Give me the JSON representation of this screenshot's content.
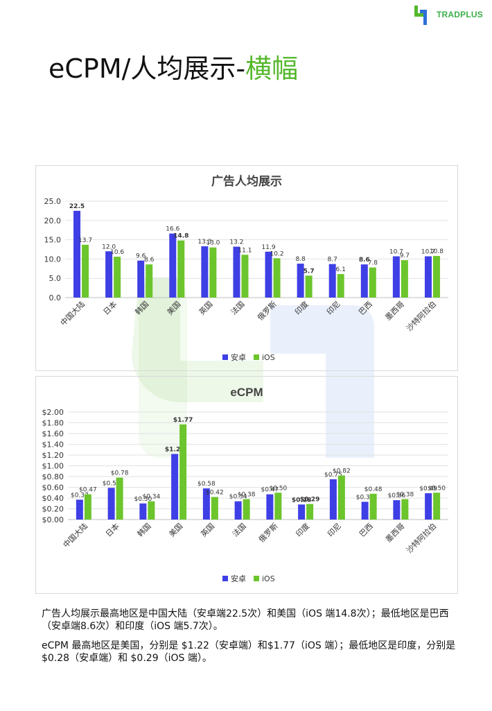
{
  "header": {
    "logo_text": "TRADPLUS",
    "title_main": "eCPM/人均展示-",
    "title_accent": "横幅"
  },
  "colors": {
    "android": "#3f3fe6",
    "ios": "#6cc52c",
    "accent": "#55b82c"
  },
  "icons": {
    "logo": "tradplus-logo-icon",
    "watermark": "tradplus-watermark-icon"
  },
  "chart_data": [
    {
      "type": "bar",
      "title": "广告人均展示",
      "categories": [
        "中国大陆",
        "日本",
        "韩国",
        "美国",
        "英国",
        "法国",
        "俄罗斯",
        "印度",
        "印尼",
        "巴西",
        "墨西哥",
        "沙特阿拉伯"
      ],
      "series": [
        {
          "name": "安卓",
          "values": [
            22.5,
            12.0,
            9.6,
            16.6,
            13.3,
            13.2,
            11.9,
            8.8,
            8.7,
            8.6,
            10.7,
            10.7
          ]
        },
        {
          "name": "iOS",
          "values": [
            13.7,
            10.6,
            8.6,
            14.8,
            13.0,
            11.1,
            10.2,
            5.7,
            6.1,
            7.8,
            9.7,
            10.8
          ]
        }
      ],
      "value_labels": [
        [
          "22.5",
          "12.0",
          "9.6",
          "16.6",
          "13.3",
          "13.2",
          "11.9",
          "8.8",
          "8.7",
          "8.6",
          "10.7",
          "10.7"
        ],
        [
          "13.7",
          "10.6",
          "8.6",
          "14.8",
          "13.0",
          "11.1",
          "10.2",
          "5.7",
          "6.1",
          "7.8",
          "9.7",
          "10.8"
        ]
      ],
      "bold_labels": [
        [
          0,
          9
        ],
        [
          3,
          7
        ]
      ],
      "yticks": [
        "0.0",
        "5.0",
        "10.0",
        "15.0",
        "20.0",
        "25.0"
      ],
      "ylim": [
        0,
        25
      ],
      "grid": true,
      "legend": "bottom"
    },
    {
      "type": "bar",
      "title": "eCPM",
      "categories": [
        "中国大陆",
        "日本",
        "韩国",
        "美国",
        "英国",
        "法国",
        "俄罗斯",
        "印度",
        "印尼",
        "巴西",
        "墨西哥",
        "沙特阿拉伯"
      ],
      "series": [
        {
          "name": "安卓",
          "values": [
            0.37,
            0.59,
            0.3,
            1.22,
            0.58,
            0.34,
            0.47,
            0.28,
            0.75,
            0.33,
            0.36,
            0.49
          ]
        },
        {
          "name": "iOS",
          "values": [
            0.47,
            0.78,
            0.34,
            1.77,
            0.42,
            0.38,
            0.5,
            0.29,
            0.82,
            0.48,
            0.38,
            0.5
          ]
        }
      ],
      "value_labels": [
        [
          "$0.37",
          "$0.59",
          "$0.30",
          "$1.22",
          "$0.58",
          "$0.34",
          "$0.47",
          "$0.28",
          "$0.75",
          "$0.33",
          "$0.36",
          "$0.49"
        ],
        [
          "$0.47",
          "$0.78",
          "$0.34",
          "$1.77",
          "$0.42",
          "$0.38",
          "$0.50",
          "$0.29",
          "$0.82",
          "$0.48",
          "$0.38",
          "$0.50"
        ]
      ],
      "bold_labels": [
        [
          3,
          7
        ],
        [
          3,
          7
        ]
      ],
      "yticks": [
        "$0.00",
        "$0.20",
        "$0.40",
        "$0.60",
        "$0.80",
        "$1.00",
        "$1.20",
        "$1.40",
        "$1.60",
        "$1.80",
        "$2.00"
      ],
      "ylim": [
        0,
        2.0
      ],
      "grid": true,
      "legend": "bottom"
    }
  ],
  "summary": {
    "p1": "广告人均展示最高地区是中国大陆（安卓端22.5次）和美国（iOS 端14.8次）；最低地区是巴西（安卓端8.6次）和印度（iOS 端5.7次）。",
    "p2": "eCPM 最高地区是美国，分别是 $1.22（安卓端）和$1.77（iOS 端）；最低地区是印度，分别是 $0.28（安卓端）和 $0.29（iOS 端）。"
  }
}
